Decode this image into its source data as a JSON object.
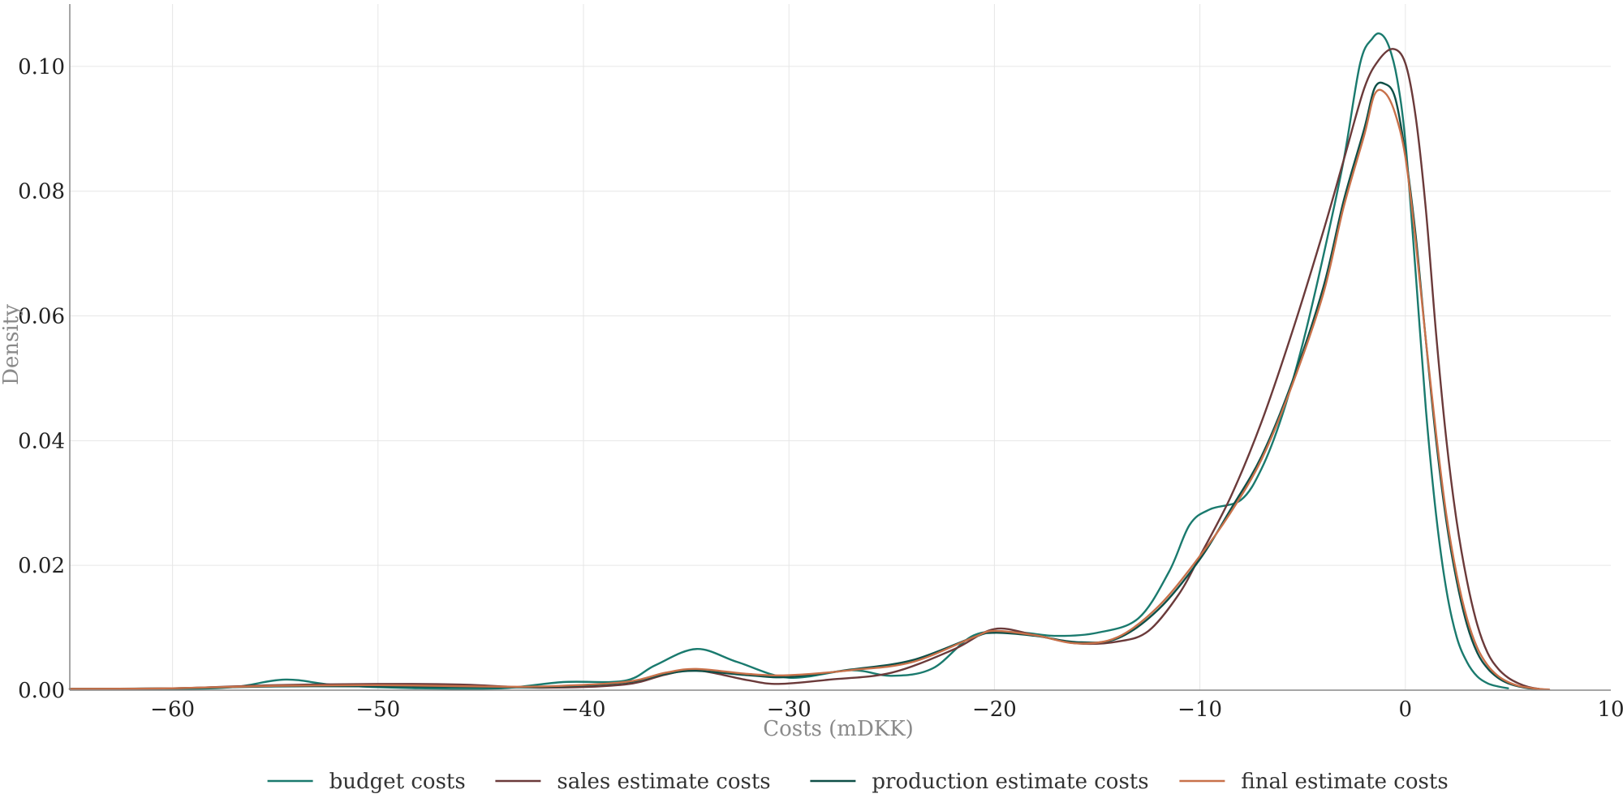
{
  "chart_data": {
    "type": "line",
    "title": "",
    "xlabel": "Costs (mDKK)",
    "ylabel": "Density",
    "xlim": [
      -65,
      10
    ],
    "ylim": [
      0,
      0.11
    ],
    "x_ticks": [
      -60,
      -50,
      -40,
      -30,
      -20,
      -10,
      0,
      10
    ],
    "x_tick_labels": [
      "−60",
      "−50",
      "−40",
      "−30",
      "−20",
      "−10",
      "0",
      "10"
    ],
    "y_ticks": [
      0,
      0.02,
      0.04,
      0.06,
      0.08,
      0.1
    ],
    "y_tick_labels": [
      "0.00",
      "0.02",
      "0.04",
      "0.06",
      "0.08",
      "0.10"
    ],
    "grid": true,
    "legend_position": "bottom-center",
    "series": [
      {
        "name": "budget costs",
        "color": "#1a7a6e",
        "x": [
          -65,
          -60,
          -57,
          -54.5,
          -52,
          -48,
          -44,
          -41,
          -38,
          -36.5,
          -34.5,
          -32.5,
          -30,
          -27,
          -25,
          -23,
          -21,
          -19,
          -17,
          -15,
          -13,
          -11.5,
          -10.5,
          -9.5,
          -8,
          -7,
          -6,
          -5,
          -4,
          -3,
          -2.2,
          -1.6,
          -1.2,
          -0.8,
          -0.4,
          0,
          0.5,
          1,
          1.5,
          2,
          2.5,
          3,
          3.5,
          4,
          4.5,
          5
        ],
        "y": [
          0.0002,
          0.0002,
          0.0005,
          0.0017,
          0.0008,
          0.0003,
          0.0003,
          0.0013,
          0.0015,
          0.004,
          0.0066,
          0.0045,
          0.002,
          0.0032,
          0.0023,
          0.0035,
          0.0088,
          0.0093,
          0.0087,
          0.0092,
          0.0115,
          0.019,
          0.0265,
          0.029,
          0.0305,
          0.0355,
          0.044,
          0.0555,
          0.0695,
          0.085,
          0.1005,
          0.1045,
          0.1052,
          0.1032,
          0.098,
          0.088,
          0.067,
          0.045,
          0.028,
          0.016,
          0.0085,
          0.0045,
          0.0022,
          0.0011,
          0.0006,
          0.0003
        ]
      },
      {
        "name": "sales estimate costs",
        "color": "#6b3a3a",
        "x": [
          -65,
          -60,
          -55,
          -50,
          -46,
          -42,
          -38,
          -36,
          -34.5,
          -32,
          -30.5,
          -28,
          -25,
          -22,
          -20,
          -18,
          -16,
          -14,
          -12.5,
          -11,
          -10,
          -8.5,
          -7,
          -5.5,
          -4,
          -3,
          -2,
          -1.3,
          -0.6,
          0,
          0.5,
          1,
          1.5,
          2,
          2.5,
          3,
          3.5,
          4,
          4.5,
          5,
          5.5,
          6,
          6.5
        ],
        "y": [
          0.0002,
          0.0003,
          0.0008,
          0.001,
          0.0009,
          0.0004,
          0.0009,
          0.0025,
          0.0032,
          0.0016,
          0.001,
          0.0017,
          0.0028,
          0.0065,
          0.0098,
          0.0088,
          0.0075,
          0.0078,
          0.0095,
          0.0155,
          0.0215,
          0.031,
          0.043,
          0.0575,
          0.0735,
          0.085,
          0.0965,
          0.101,
          0.1028,
          0.1005,
          0.092,
          0.077,
          0.057,
          0.04,
          0.027,
          0.0175,
          0.0105,
          0.006,
          0.0035,
          0.002,
          0.0011,
          0.0005,
          0.0002
        ]
      },
      {
        "name": "production estimate costs",
        "color": "#0e4f47",
        "x": [
          -65,
          -60,
          -55,
          -50,
          -45,
          -42,
          -38,
          -36,
          -34.5,
          -32,
          -30,
          -27,
          -24,
          -21,
          -20,
          -18,
          -16,
          -14,
          -12,
          -10,
          -8.5,
          -7,
          -5.5,
          -4,
          -3,
          -2,
          -1.5,
          -1,
          -0.5,
          0,
          0.5,
          1,
          1.5,
          2,
          2.5,
          3,
          3.5,
          4,
          4.5,
          5,
          5.5,
          6,
          6.5
        ],
        "y": [
          0.0002,
          0.0003,
          0.0006,
          0.0006,
          0.0005,
          0.0005,
          0.0012,
          0.0026,
          0.0031,
          0.0024,
          0.0021,
          0.0033,
          0.0048,
          0.0085,
          0.0092,
          0.0087,
          0.0077,
          0.0083,
          0.013,
          0.021,
          0.029,
          0.0375,
          0.0495,
          0.0645,
          0.0785,
          0.09,
          0.0965,
          0.0972,
          0.095,
          0.086,
          0.073,
          0.056,
          0.04,
          0.027,
          0.0175,
          0.0105,
          0.006,
          0.0035,
          0.002,
          0.0011,
          0.0006,
          0.0003,
          0.0002
        ]
      },
      {
        "name": "final estimate costs",
        "color": "#c8714a",
        "x": [
          -65,
          -60,
          -55,
          -50,
          -45,
          -42,
          -38,
          -36,
          -34.5,
          -32,
          -30,
          -27,
          -24,
          -21,
          -20,
          -18,
          -16,
          -14,
          -12,
          -10,
          -8.5,
          -7,
          -5.5,
          -4,
          -3,
          -2,
          -1.5,
          -1,
          -0.5,
          0,
          0.5,
          1,
          1.5,
          2,
          2.5,
          3,
          3.5,
          4,
          4.5,
          5,
          5.5,
          6,
          6.5,
          7
        ],
        "y": [
          0.0002,
          0.0003,
          0.0007,
          0.0008,
          0.0006,
          0.0006,
          0.0013,
          0.0028,
          0.0034,
          0.0026,
          0.0024,
          0.0032,
          0.0045,
          0.0085,
          0.0095,
          0.0088,
          0.0075,
          0.0085,
          0.0135,
          0.0215,
          0.0285,
          0.037,
          0.049,
          0.0635,
          0.0775,
          0.089,
          0.0955,
          0.0958,
          0.0925,
          0.0855,
          0.072,
          0.056,
          0.041,
          0.028,
          0.0185,
          0.0115,
          0.0068,
          0.004,
          0.0023,
          0.0013,
          0.0007,
          0.0004,
          0.0002,
          0.0001
        ]
      }
    ]
  }
}
